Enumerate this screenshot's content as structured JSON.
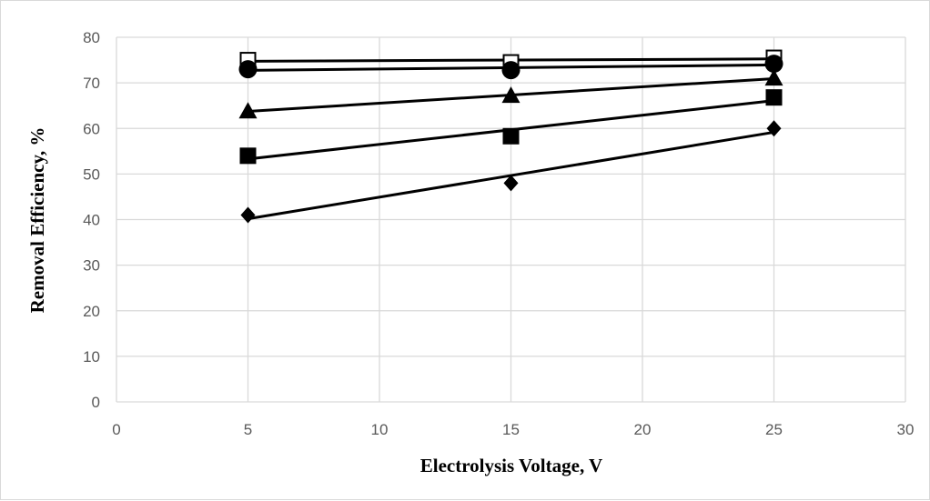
{
  "chart_data": {
    "type": "scatter",
    "title": "",
    "xlabel": "Electrolysis Voltage, V",
    "ylabel": "Removal Efficiency, %",
    "xlim": [
      0,
      30
    ],
    "ylim": [
      0,
      80
    ],
    "xticks": [
      0,
      5,
      10,
      15,
      20,
      25,
      30
    ],
    "yticks": [
      0,
      10,
      20,
      30,
      40,
      50,
      60,
      70,
      80
    ],
    "grid": true,
    "legend": "none",
    "trendlines": "linear",
    "series": [
      {
        "marker": "open-square",
        "x": [
          5,
          15,
          25
        ],
        "y": [
          75.0,
          74.5,
          75.5
        ]
      },
      {
        "marker": "circle",
        "x": [
          5,
          15,
          25
        ],
        "y": [
          73.0,
          72.8,
          74.2
        ]
      },
      {
        "marker": "triangle",
        "x": [
          5,
          15,
          25
        ],
        "y": [
          63.8,
          67.2,
          71.0
        ]
      },
      {
        "marker": "filled-square",
        "x": [
          5,
          15,
          25
        ],
        "y": [
          54.0,
          58.3,
          66.8
        ]
      },
      {
        "marker": "diamond",
        "x": [
          5,
          15,
          25
        ],
        "y": [
          41.0,
          48.0,
          60.0
        ]
      }
    ]
  },
  "colors": {
    "gridline": "#d9d9d9",
    "line": "#000000",
    "marker": "#000000",
    "tick_text": "#595959"
  }
}
